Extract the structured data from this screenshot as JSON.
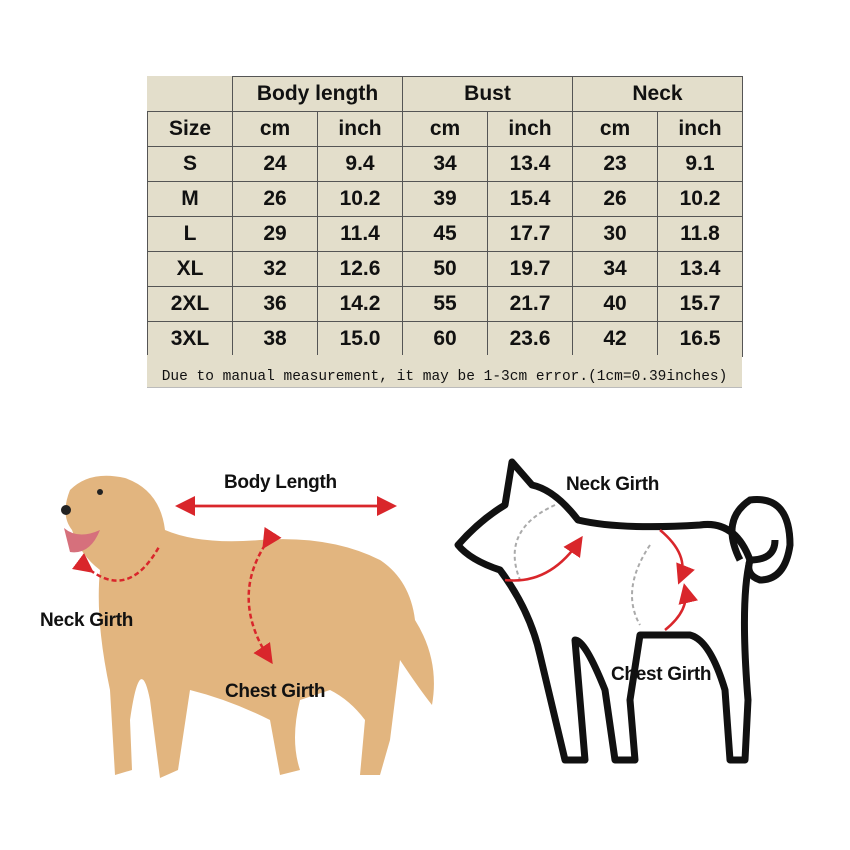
{
  "table": {
    "groups": [
      "Body length",
      "Bust",
      "Neck"
    ],
    "size_header": "Size",
    "units": [
      "cm",
      "inch",
      "cm",
      "inch",
      "cm",
      "inch"
    ],
    "rows": [
      [
        "S",
        "24",
        "9.4",
        "34",
        "13.4",
        "23",
        "9.1"
      ],
      [
        "M",
        "26",
        "10.2",
        "39",
        "15.4",
        "26",
        "10.2"
      ],
      [
        "L",
        "29",
        "11.4",
        "45",
        "17.7",
        "30",
        "11.8"
      ],
      [
        "XL",
        "32",
        "12.6",
        "50",
        "19.7",
        "34",
        "13.4"
      ],
      [
        "2XL",
        "36",
        "14.2",
        "55",
        "21.7",
        "40",
        "15.7"
      ],
      [
        "3XL",
        "38",
        "15.0",
        "60",
        "23.6",
        "42",
        "16.5"
      ]
    ],
    "note": "Due to manual measurement, it may be 1-3cm error.(1cm=0.39inches)"
  },
  "photo_diagram": {
    "body_length": "Body Length",
    "neck_girth": "Neck Girth",
    "chest_girth": "Chest Girth"
  },
  "outline_diagram": {
    "neck_girth": "Neck Girth",
    "chest_girth": "Chest Girth"
  },
  "colors": {
    "table_bg": "#e3decb",
    "arrow": "#d9262b",
    "dog_fur": "#e2b57f"
  }
}
